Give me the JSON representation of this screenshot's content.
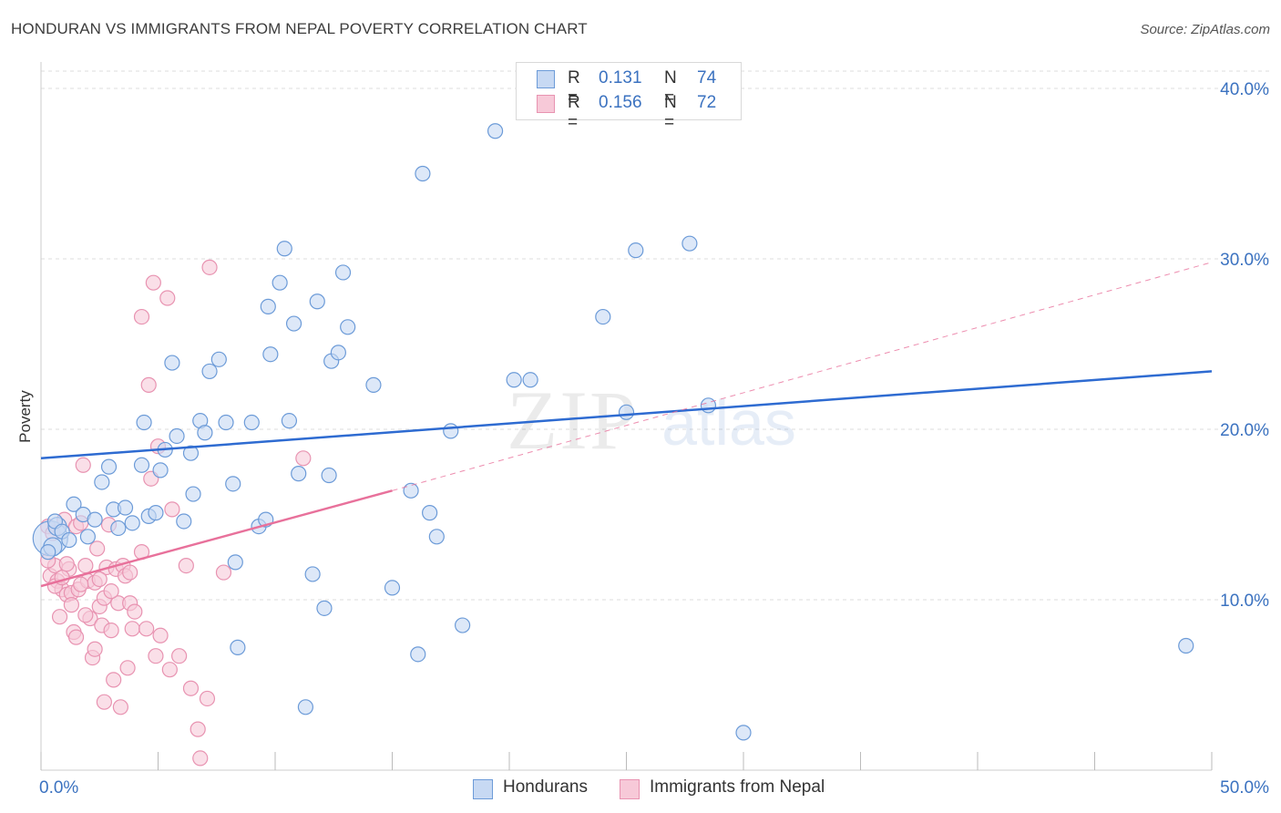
{
  "header": {
    "title": "HONDURAN VS IMMIGRANTS FROM NEPAL POVERTY CORRELATION CHART",
    "source": "Source: ZipAtlas.com"
  },
  "watermark": {
    "zip": "ZIP",
    "atlas": "atlas"
  },
  "colors": {
    "blue_fill": "#c7d9f3",
    "blue_stroke": "#6c9bd8",
    "blue_line": "#2e6bd1",
    "pink_fill": "#f7c9d8",
    "pink_stroke": "#e893b1",
    "pink_line": "#e8719b",
    "axis_text": "#3b72c0",
    "grid": "#dddddd"
  },
  "legend_top": {
    "rows": [
      {
        "r_label": "R =",
        "r_value": "0.131",
        "n_label": "N =",
        "n_value": "74"
      },
      {
        "r_label": "R =",
        "r_value": "0.156",
        "n_label": "N =",
        "n_value": "72"
      }
    ]
  },
  "legend_bottom": {
    "items": [
      "Hondurans",
      "Immigrants from Nepal"
    ]
  },
  "chart_data": {
    "type": "scatter",
    "xlabel": "",
    "ylabel": "Poverty",
    "xlim": [
      0,
      50
    ],
    "ylim": [
      0,
      40
    ],
    "x_tick_labels": [
      "0.0%",
      "50.0%"
    ],
    "y_ticks": [
      10,
      20,
      30,
      40
    ],
    "y_tick_labels": [
      "10.0%",
      "20.0%",
      "30.0%",
      "40.0%"
    ],
    "grid": true,
    "series": [
      {
        "name": "Hondurans",
        "r": 0.131,
        "n": 74,
        "trend": {
          "x": [
            0,
            50
          ],
          "y": [
            18.3,
            23.4
          ],
          "dashed_extension": false
        },
        "points": [
          [
            0.4,
            13.6
          ],
          [
            0.7,
            14.3
          ],
          [
            0.5,
            13.1
          ],
          [
            0.6,
            14.6
          ],
          [
            0.9,
            14.0
          ],
          [
            1.2,
            13.5
          ],
          [
            1.4,
            15.6
          ],
          [
            1.8,
            15.0
          ],
          [
            2.0,
            13.7
          ],
          [
            2.3,
            14.7
          ],
          [
            2.6,
            16.9
          ],
          [
            2.9,
            17.8
          ],
          [
            3.1,
            15.3
          ],
          [
            3.3,
            14.2
          ],
          [
            3.6,
            15.4
          ],
          [
            3.9,
            14.5
          ],
          [
            4.3,
            17.9
          ],
          [
            4.4,
            20.4
          ],
          [
            4.6,
            14.9
          ],
          [
            4.9,
            15.1
          ],
          [
            5.1,
            17.6
          ],
          [
            5.3,
            18.8
          ],
          [
            5.6,
            23.9
          ],
          [
            5.8,
            19.6
          ],
          [
            6.1,
            14.6
          ],
          [
            6.4,
            18.6
          ],
          [
            6.5,
            16.2
          ],
          [
            6.8,
            20.5
          ],
          [
            7.0,
            19.8
          ],
          [
            7.2,
            23.4
          ],
          [
            7.6,
            24.1
          ],
          [
            7.9,
            20.4
          ],
          [
            8.2,
            16.8
          ],
          [
            8.3,
            12.2
          ],
          [
            8.4,
            7.2
          ],
          [
            9.0,
            20.4
          ],
          [
            9.3,
            14.3
          ],
          [
            9.6,
            14.7
          ],
          [
            9.7,
            27.2
          ],
          [
            9.8,
            24.4
          ],
          [
            10.2,
            28.6
          ],
          [
            10.4,
            30.6
          ],
          [
            10.6,
            20.5
          ],
          [
            10.8,
            26.2
          ],
          [
            11.0,
            17.4
          ],
          [
            11.3,
            3.7
          ],
          [
            11.6,
            11.5
          ],
          [
            11.8,
            27.5
          ],
          [
            12.1,
            9.5
          ],
          [
            12.3,
            17.3
          ],
          [
            12.4,
            24.0
          ],
          [
            12.7,
            24.5
          ],
          [
            12.9,
            29.2
          ],
          [
            13.1,
            26.0
          ],
          [
            14.2,
            22.6
          ],
          [
            15.0,
            10.7
          ],
          [
            15.8,
            16.4
          ],
          [
            16.1,
            6.8
          ],
          [
            16.3,
            35.0
          ],
          [
            16.6,
            15.1
          ],
          [
            16.9,
            13.7
          ],
          [
            17.5,
            19.9
          ],
          [
            18.0,
            8.5
          ],
          [
            19.4,
            37.5
          ],
          [
            20.2,
            22.9
          ],
          [
            20.9,
            22.9
          ],
          [
            24.0,
            26.6
          ],
          [
            25.0,
            21.0
          ],
          [
            25.4,
            30.5
          ],
          [
            27.7,
            30.9
          ],
          [
            28.5,
            21.4
          ],
          [
            30.0,
            2.2
          ],
          [
            48.9,
            7.3
          ],
          [
            0.3,
            12.8
          ]
        ],
        "sizes": [
          36,
          18,
          18,
          14,
          14,
          14,
          14,
          14,
          14,
          14,
          14,
          14,
          14,
          14,
          14,
          14,
          14,
          14,
          14,
          14,
          14,
          14,
          14,
          14,
          14,
          14,
          14,
          14,
          14,
          14,
          14,
          14,
          14,
          14,
          14,
          14,
          14,
          14,
          14,
          14,
          14,
          14,
          14,
          14,
          14,
          14,
          14,
          14,
          14,
          14,
          14,
          14,
          14,
          14,
          14,
          14,
          14,
          14,
          14,
          14,
          14,
          14,
          14,
          14,
          14,
          14,
          14,
          14,
          14,
          14,
          14,
          14,
          14,
          14
        ]
      },
      {
        "name": "Immigrants from Nepal",
        "r": 0.156,
        "n": 72,
        "trend": {
          "x": [
            0,
            15
          ],
          "y": [
            10.8,
            16.4
          ],
          "dashed_extension_to": [
            50,
            29.8
          ]
        },
        "points": [
          [
            0.3,
            14.3
          ],
          [
            0.4,
            11.4
          ],
          [
            0.5,
            13.9
          ],
          [
            0.6,
            12.0
          ],
          [
            0.7,
            11.1
          ],
          [
            0.8,
            9.0
          ],
          [
            0.9,
            10.6
          ],
          [
            1.0,
            14.7
          ],
          [
            1.1,
            10.3
          ],
          [
            1.2,
            11.8
          ],
          [
            1.3,
            10.4
          ],
          [
            1.4,
            8.1
          ],
          [
            1.5,
            14.3
          ],
          [
            1.6,
            10.6
          ],
          [
            1.7,
            14.5
          ],
          [
            1.8,
            17.9
          ],
          [
            1.9,
            12.0
          ],
          [
            2.0,
            11.1
          ],
          [
            2.1,
            8.9
          ],
          [
            2.2,
            6.6
          ],
          [
            2.3,
            11.0
          ],
          [
            2.4,
            13.0
          ],
          [
            2.5,
            9.6
          ],
          [
            2.6,
            8.5
          ],
          [
            2.7,
            10.1
          ],
          [
            2.8,
            11.9
          ],
          [
            2.9,
            14.4
          ],
          [
            3.0,
            8.2
          ],
          [
            3.1,
            5.3
          ],
          [
            3.2,
            11.8
          ],
          [
            3.3,
            9.8
          ],
          [
            3.4,
            3.7
          ],
          [
            3.5,
            12.0
          ],
          [
            3.6,
            11.4
          ],
          [
            3.7,
            6.0
          ],
          [
            3.8,
            9.8
          ],
          [
            3.9,
            8.3
          ],
          [
            4.0,
            9.3
          ],
          [
            4.3,
            12.8
          ],
          [
            4.3,
            26.6
          ],
          [
            4.5,
            8.3
          ],
          [
            4.6,
            22.6
          ],
          [
            4.7,
            17.1
          ],
          [
            4.8,
            28.6
          ],
          [
            4.9,
            6.7
          ],
          [
            5.0,
            19.0
          ],
          [
            5.1,
            7.9
          ],
          [
            5.4,
            27.7
          ],
          [
            5.5,
            5.9
          ],
          [
            5.6,
            15.3
          ],
          [
            5.9,
            6.7
          ],
          [
            6.2,
            12.0
          ],
          [
            6.4,
            4.8
          ],
          [
            6.7,
            2.4
          ],
          [
            6.8,
            0.7
          ],
          [
            7.1,
            4.2
          ],
          [
            7.2,
            29.5
          ],
          [
            7.8,
            11.6
          ],
          [
            11.2,
            18.3
          ],
          [
            0.3,
            12.3
          ],
          [
            0.6,
            10.8
          ],
          [
            0.9,
            11.3
          ],
          [
            1.1,
            12.1
          ],
          [
            1.3,
            9.7
          ],
          [
            1.5,
            7.8
          ],
          [
            1.7,
            10.9
          ],
          [
            1.9,
            9.1
          ],
          [
            2.3,
            7.1
          ],
          [
            2.5,
            11.2
          ],
          [
            2.7,
            4.0
          ],
          [
            3.0,
            10.5
          ],
          [
            3.8,
            11.6
          ]
        ],
        "sizes": [
          14,
          14,
          14,
          14,
          14,
          14,
          14,
          14,
          14,
          14,
          14,
          14,
          14,
          14,
          14,
          14,
          14,
          14,
          14,
          14,
          14,
          14,
          14,
          14,
          14,
          14,
          14,
          14,
          14,
          14,
          14,
          14,
          14,
          14,
          14,
          14,
          14,
          14,
          14,
          14,
          14,
          14,
          14,
          14,
          14,
          14,
          14,
          14,
          14,
          14,
          14,
          14,
          14,
          14,
          14,
          14,
          14,
          14,
          14,
          14,
          14,
          14,
          14,
          14,
          14,
          14,
          14,
          14,
          14,
          14,
          14,
          14
        ]
      }
    ]
  }
}
